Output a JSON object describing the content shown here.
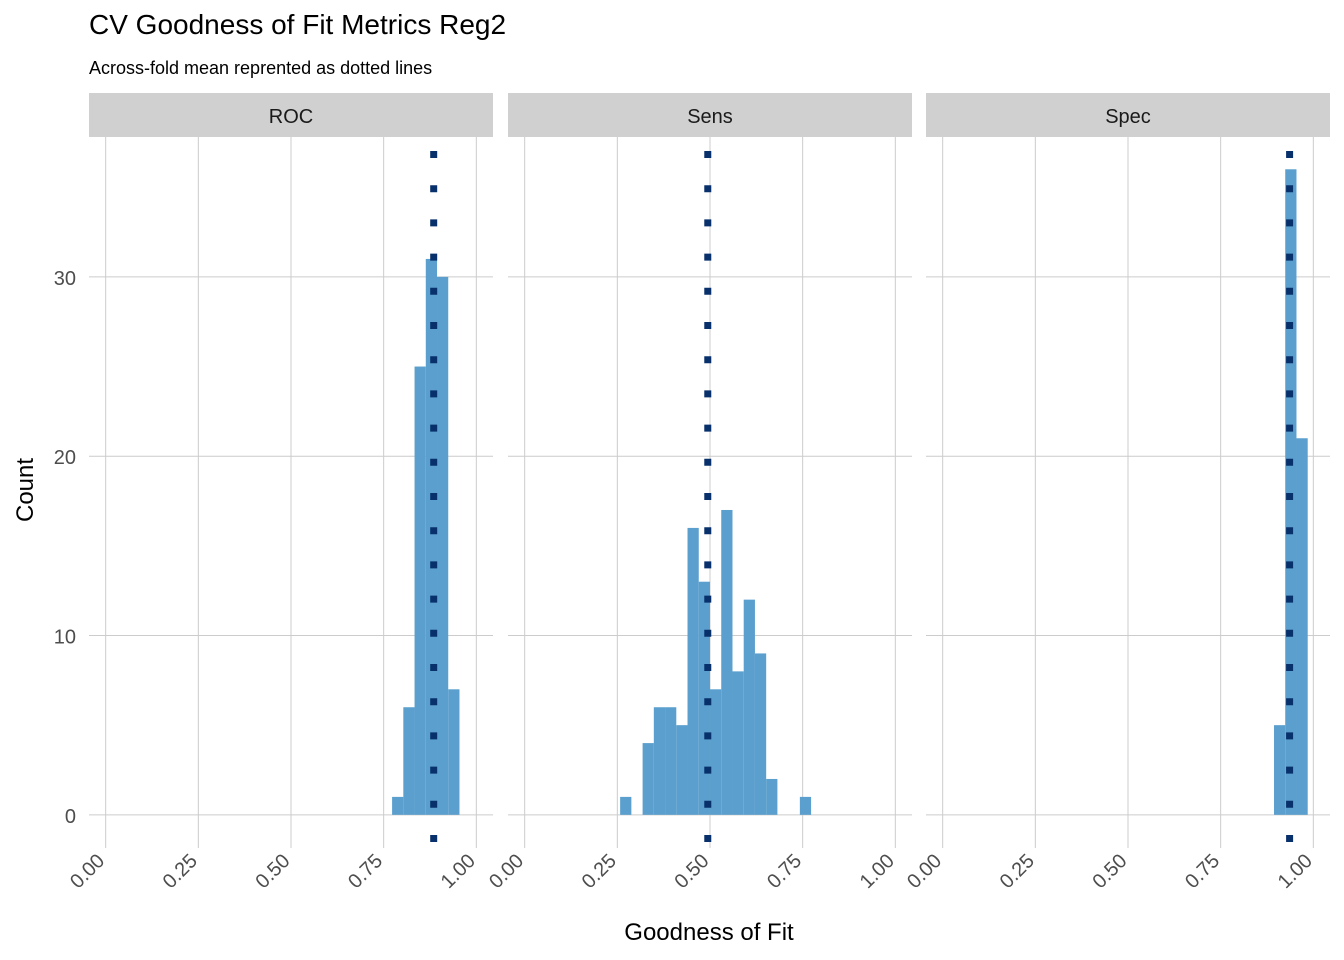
{
  "title": "CV Goodness of Fit Metrics Reg2",
  "subtitle": "Across-fold mean reprented as dotted lines",
  "colors": {
    "bar": "#5A9FCD",
    "mean_line": "#08306B",
    "strip_bg": "#D0D0D0",
    "grid": "#CCCCCC",
    "tick_text": "#4D4D4D"
  },
  "chart_data": {
    "type": "histogram",
    "title": "CV Goodness of Fit Metrics Reg2",
    "subtitle": "Across-fold mean reprented as dotted lines",
    "xlabel": "Goodness of Fit",
    "ylabel": "Count",
    "xlim": [
      -0.045,
      1.045
    ],
    "ylim": [
      -1.85,
      37.8
    ],
    "x_ticks": [
      0,
      0.25,
      0.5,
      0.75,
      1
    ],
    "x_tick_labels": [
      "0.00",
      "0.25",
      "0.50",
      "0.75",
      "1.00"
    ],
    "y_ticks": [
      0,
      10,
      20,
      30
    ],
    "y_tick_labels": [
      "0",
      "10",
      "20",
      "30"
    ],
    "bin_width": 0.0303,
    "grid": true,
    "legend": "none",
    "panels": [
      {
        "name": "ROC",
        "mean": 0.885,
        "bins": [
          {
            "x": 0.7879,
            "count": 1
          },
          {
            "x": 0.8182,
            "count": 6
          },
          {
            "x": 0.8485,
            "count": 25
          },
          {
            "x": 0.8788,
            "count": 31
          },
          {
            "x": 0.9091,
            "count": 30
          },
          {
            "x": 0.9394,
            "count": 7
          }
        ]
      },
      {
        "name": "Sens",
        "mean": 0.494,
        "bins": [
          {
            "x": 0.2727,
            "count": 1
          },
          {
            "x": 0.303,
            "count": 0
          },
          {
            "x": 0.3333,
            "count": 4
          },
          {
            "x": 0.3636,
            "count": 6
          },
          {
            "x": 0.3939,
            "count": 6
          },
          {
            "x": 0.4242,
            "count": 5
          },
          {
            "x": 0.4545,
            "count": 16
          },
          {
            "x": 0.4848,
            "count": 13
          },
          {
            "x": 0.5152,
            "count": 7
          },
          {
            "x": 0.5455,
            "count": 17
          },
          {
            "x": 0.5758,
            "count": 8
          },
          {
            "x": 0.6061,
            "count": 12
          },
          {
            "x": 0.6364,
            "count": 9
          },
          {
            "x": 0.6667,
            "count": 2
          },
          {
            "x": 0.697,
            "count": 0
          },
          {
            "x": 0.7273,
            "count": 0
          },
          {
            "x": 0.7576,
            "count": 1
          }
        ]
      },
      {
        "name": "Spec",
        "mean": 0.936,
        "bins": [
          {
            "x": 0.9091,
            "count": 5
          },
          {
            "x": 0.9394,
            "count": 36
          },
          {
            "x": 0.9697,
            "count": 21
          }
        ]
      }
    ]
  }
}
